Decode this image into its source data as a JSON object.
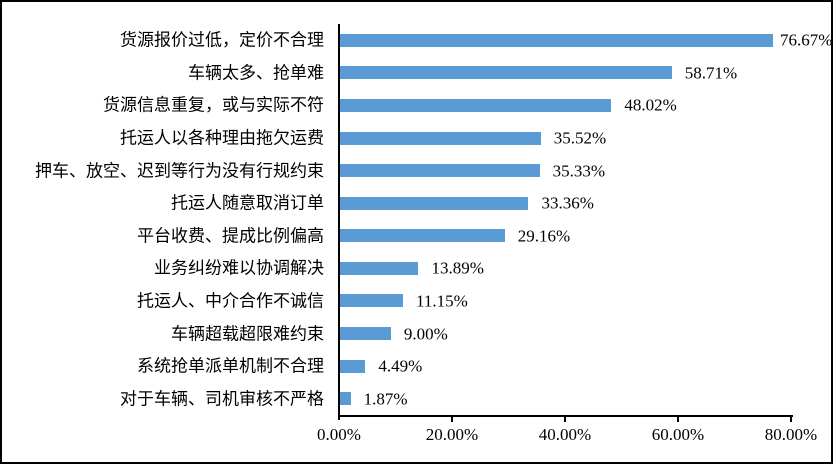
{
  "chart_data": {
    "type": "bar",
    "orientation": "horizontal",
    "title": "",
    "xlabel": "",
    "ylabel": "",
    "xlim": [
      0,
      80
    ],
    "grid": false,
    "legend": "none",
    "bar_color": "#5b9bd5",
    "axis_color": "#000000",
    "categories": [
      "货源报价过低，定价不合理",
      "车辆太多、抢单难",
      "货源信息重复，或与实际不符",
      "托运人以各种理由拖欠运费",
      "押车、放空、迟到等行为没有行规约束",
      "托运人随意取消订单",
      "平台收费、提成比例偏高",
      "业务纠纷难以协调解决",
      "托运人、中介合作不诚信",
      "车辆超载超限难约束",
      "系统抢单派单机制不合理",
      "对于车辆、司机审核不严格"
    ],
    "values": [
      76.67,
      58.71,
      48.02,
      35.52,
      35.33,
      33.36,
      29.16,
      13.89,
      11.15,
      9.0,
      4.49,
      1.87
    ],
    "value_labels": [
      "76.67%",
      "58.71%",
      "48.02%",
      "35.52%",
      "35.33%",
      "33.36%",
      "29.16%",
      "13.89%",
      "11.15%",
      "9.00%",
      "4.49%",
      "1.87%"
    ],
    "x_ticks": [
      "0.00%",
      "20.00%",
      "40.00%",
      "60.00%",
      "80.00%"
    ]
  }
}
